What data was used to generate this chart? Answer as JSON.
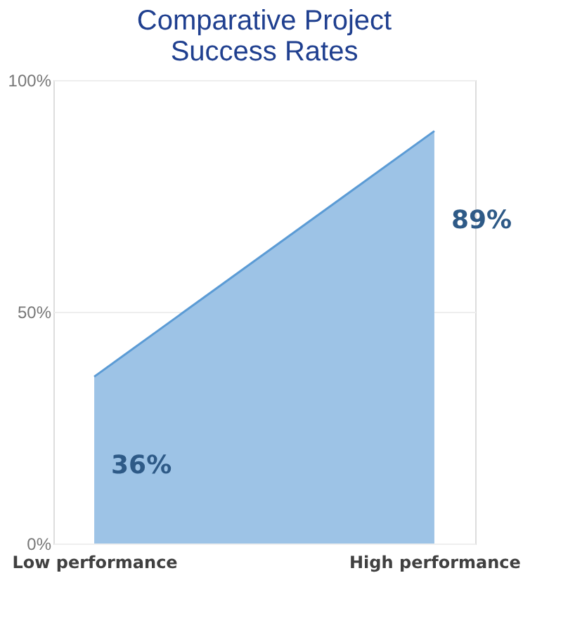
{
  "chart_data": {
    "type": "area",
    "title": [
      "Comparative Project",
      "Success Rates"
    ],
    "categories": [
      "Low performance",
      "High performance"
    ],
    "series": [
      {
        "color": "#9dc3e6",
        "values": [
          36,
          89
        ]
      }
    ],
    "value_labels": [
      "36%",
      "89%"
    ],
    "ylim": [
      0,
      100
    ],
    "yticks": [
      {
        "value": 0,
        "label": "0%"
      },
      {
        "value": 50,
        "label": "50%"
      },
      {
        "value": 100,
        "label": "100%"
      }
    ],
    "grid": "y"
  }
}
